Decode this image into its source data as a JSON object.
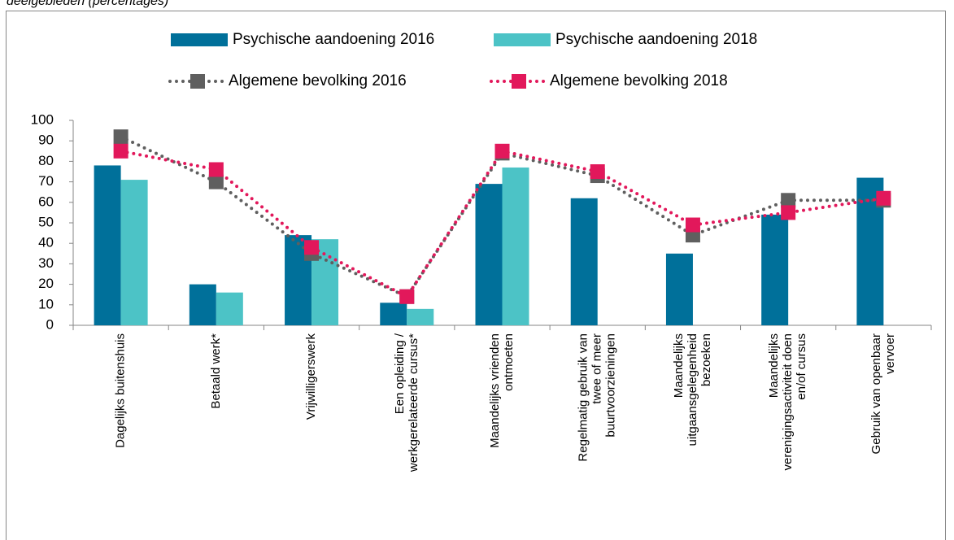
{
  "chart_data": {
    "type": "bar",
    "caption": "deelgebieden (percentages)",
    "categories": [
      "Dagelijks buitenshuis",
      "Betaald werk*",
      "Vrijwilligerswerk",
      "Een opleiding /\nwerkgerelateerde cursus*",
      "Maandelijks vrienden\nontmoeten",
      "Regelmatig gebruik van\ntwee of meer\nbuurtvoorzieningen",
      "Maandelijks\nuitgaansgelegenheid\nbezoeken",
      "Maandelijks\nverenigingsactiviteit doen\nen/of cursus",
      "Gebruik van openbaar\nvervoer"
    ],
    "series": [
      {
        "name": "Psychische aandoening 2016",
        "type": "bar",
        "color": "#00709a",
        "values": [
          78,
          20,
          44,
          11,
          69,
          62,
          35,
          54,
          72
        ]
      },
      {
        "name": "Psychische aandoening 2018",
        "type": "bar",
        "color": "#4cc3c6",
        "values": [
          71,
          16,
          42,
          8,
          77,
          null,
          null,
          null,
          null
        ]
      },
      {
        "name": "Algemene bevolking 2016",
        "type": "line",
        "color": "#5f5f5f",
        "values": [
          92,
          70,
          35,
          14,
          84,
          73,
          44,
          61,
          61
        ]
      },
      {
        "name": "Algemene bevolking 2018",
        "type": "line",
        "color": "#e2185b",
        "values": [
          85,
          76,
          38,
          14,
          85,
          75,
          49,
          55,
          62
        ]
      }
    ],
    "ylim": [
      0,
      100
    ],
    "yticks": [
      0,
      10,
      20,
      30,
      40,
      50,
      60,
      70,
      80,
      90,
      100
    ],
    "grid": false
  }
}
